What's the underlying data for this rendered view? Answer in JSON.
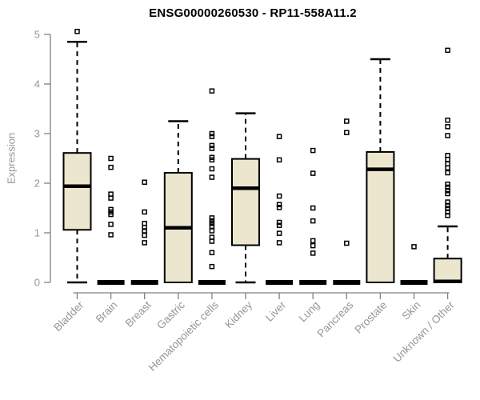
{
  "chart_data": {
    "type": "boxplot",
    "title": "ENSG00000260530 - RP11-558A11.2",
    "xlabel": "",
    "ylabel": "Expression",
    "ylim": [
      0,
      5
    ],
    "yticks": [
      0,
      1,
      2,
      3,
      4,
      5
    ],
    "grid": false,
    "legend": "none",
    "categories": [
      "Bladder",
      "Brain",
      "Breast",
      "Gastric",
      "Hematopoietic cells",
      "Kidney",
      "Liver",
      "Lung",
      "Pancreas",
      "Prostate",
      "Skin",
      "Unknown / Other"
    ],
    "boxes": [
      {
        "category": "Bladder",
        "q1": 1.06,
        "median": 1.94,
        "q3": 2.61,
        "whisker_low": 0,
        "whisker_high": 4.85,
        "outliers": [
          5.06
        ]
      },
      {
        "category": "Brain",
        "q1": 0,
        "median": 0,
        "q3": 0,
        "whisker_low": 0,
        "whisker_high": 0,
        "outliers": [
          2.5,
          2.32,
          1.78,
          1.7,
          1.47,
          1.42,
          1.37,
          1.17,
          0.96
        ]
      },
      {
        "category": "Breast",
        "q1": 0,
        "median": 0,
        "q3": 0,
        "whisker_low": 0,
        "whisker_high": 0,
        "outliers": [
          2.02,
          1.42,
          1.19,
          1.11,
          1.04,
          0.95,
          0.8
        ]
      },
      {
        "category": "Gastric",
        "q1": 0,
        "median": 1.1,
        "q3": 2.21,
        "whisker_low": 0,
        "whisker_high": 3.25,
        "outliers": []
      },
      {
        "category": "Hematopoietic cells",
        "q1": 0,
        "median": 0,
        "q3": 0,
        "whisker_low": 0,
        "whisker_high": 0,
        "outliers": [
          3.86,
          3.0,
          2.94,
          2.76,
          2.7,
          2.52,
          2.47,
          2.29,
          2.12,
          1.3,
          1.24,
          1.19,
          1.13,
          1.04,
          0.91,
          0.83,
          0.6,
          0.32
        ]
      },
      {
        "category": "Kidney",
        "q1": 0.75,
        "median": 1.9,
        "q3": 2.49,
        "whisker_low": 0,
        "whisker_high": 3.41,
        "outliers": []
      },
      {
        "category": "Liver",
        "q1": 0,
        "median": 0,
        "q3": 0,
        "whisker_low": 0,
        "whisker_high": 0,
        "outliers": [
          2.94,
          2.47,
          1.74,
          1.57,
          1.51,
          1.21,
          1.15,
          0.99,
          0.8
        ]
      },
      {
        "category": "Lung",
        "q1": 0,
        "median": 0,
        "q3": 0,
        "whisker_low": 0,
        "whisker_high": 0,
        "outliers": [
          2.66,
          2.2,
          1.5,
          1.24,
          0.84,
          0.74,
          0.59
        ]
      },
      {
        "category": "Pancreas",
        "q1": 0,
        "median": 0,
        "q3": 0,
        "whisker_low": 0,
        "whisker_high": 0,
        "outliers": [
          3.25,
          3.02,
          0.79
        ]
      },
      {
        "category": "Prostate",
        "q1": 0,
        "median": 2.28,
        "q3": 2.63,
        "whisker_low": 0,
        "whisker_high": 4.5,
        "outliers": []
      },
      {
        "category": "Skin",
        "q1": 0,
        "median": 0,
        "q3": 0,
        "whisker_low": 0,
        "whisker_high": 0,
        "outliers": [
          0.72
        ]
      },
      {
        "category": "Unknown / Other",
        "q1": 0,
        "median": 0.02,
        "q3": 0.48,
        "whisker_low": 0,
        "whisker_high": 1.13,
        "outliers": [
          4.68,
          3.27,
          3.14,
          2.96,
          2.56,
          2.48,
          2.39,
          2.31,
          2.21,
          1.98,
          1.92,
          1.85,
          1.79,
          1.62,
          1.55,
          1.49,
          1.42,
          1.35
        ]
      }
    ],
    "colors": {
      "box_fill": "#ece6cf",
      "box_border": "#000000",
      "median": "#000000",
      "whisker": "#000000",
      "outlier": "#000000",
      "axis": "#808080",
      "tick_label": "#969696",
      "title": "#000000",
      "background": "#ffffff"
    }
  }
}
